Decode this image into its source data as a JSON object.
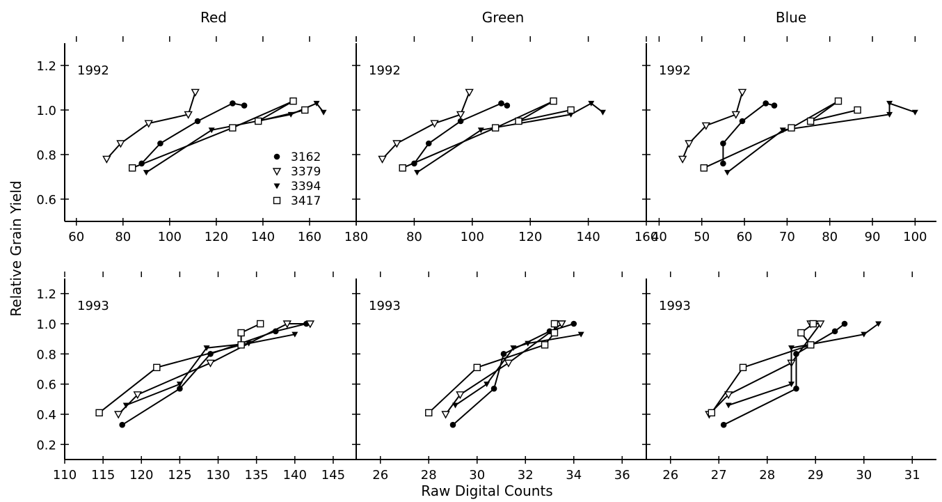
{
  "figure": {
    "ylabel": "Relative Grain Yield",
    "xlabel": "Raw Digital Counts",
    "column_titles": [
      "Red",
      "Green",
      "Blue"
    ]
  },
  "legend": {
    "placement": "inside-right of top-left panel",
    "entries": [
      {
        "label": "3162",
        "marker": "filled-circle"
      },
      {
        "label": "3379",
        "marker": "open-triangle-down"
      },
      {
        "label": "3394",
        "marker": "filled-triangle-down"
      },
      {
        "label": "3417",
        "marker": "open-square"
      }
    ]
  },
  "chart_data": [
    {
      "type": "line",
      "column_title": "Red",
      "panel_label": "1992",
      "xlim": [
        55,
        180
      ],
      "ylim": [
        0.5,
        1.3
      ],
      "xticks": [
        60,
        80,
        100,
        120,
        140,
        160,
        180
      ],
      "xtick_labels": [
        "60",
        "80",
        "100",
        "120",
        "140",
        "160",
        "180"
      ],
      "yticks": [
        0.6,
        0.8,
        1.0,
        1.2
      ],
      "ytick_labels": [
        "0.6",
        "0.8",
        "1.0",
        "1.2"
      ],
      "series": [
        {
          "name": "3162",
          "x": [
            88,
            96,
            112,
            127,
            132
          ],
          "y": [
            0.76,
            0.85,
            0.95,
            1.03,
            1.02
          ]
        },
        {
          "name": "3379",
          "x": [
            73,
            79,
            91,
            108,
            111
          ],
          "y": [
            0.78,
            0.85,
            0.94,
            0.98,
            1.08
          ]
        },
        {
          "name": "3394",
          "x": [
            90,
            118,
            152,
            163,
            166
          ],
          "y": [
            0.72,
            0.91,
            0.98,
            1.03,
            0.99
          ]
        },
        {
          "name": "3417",
          "x": [
            84,
            127,
            153,
            138,
            158
          ],
          "y": [
            0.74,
            0.92,
            1.04,
            0.95,
            1.0
          ]
        }
      ]
    },
    {
      "type": "line",
      "column_title": "Green",
      "panel_label": "1992",
      "xlim": [
        60,
        160
      ],
      "ylim": [
        0.5,
        1.3
      ],
      "xticks": [
        60,
        80,
        100,
        120,
        140,
        160
      ],
      "xtick_labels": [
        "",
        "80",
        "100",
        "120",
        "140",
        "160"
      ],
      "yticks": [
        0.6,
        0.8,
        1.0,
        1.2
      ],
      "ytick_labels": [],
      "series": [
        {
          "name": "3162",
          "x": [
            80,
            85,
            96,
            110,
            112
          ],
          "y": [
            0.76,
            0.85,
            0.95,
            1.03,
            1.02
          ]
        },
        {
          "name": "3379",
          "x": [
            69,
            74,
            87,
            96,
            99
          ],
          "y": [
            0.78,
            0.85,
            0.94,
            0.98,
            1.08
          ]
        },
        {
          "name": "3394",
          "x": [
            81,
            103,
            134,
            141,
            145
          ],
          "y": [
            0.72,
            0.91,
            0.98,
            1.03,
            0.99
          ]
        },
        {
          "name": "3417",
          "x": [
            76,
            108,
            128,
            116,
            134
          ],
          "y": [
            0.74,
            0.92,
            1.04,
            0.95,
            1.0
          ]
        }
      ]
    },
    {
      "type": "line",
      "column_title": "Blue",
      "panel_label": "1992",
      "xlim": [
        37,
        105
      ],
      "ylim": [
        0.5,
        1.3
      ],
      "xticks": [
        40,
        50,
        60,
        70,
        80,
        90,
        100
      ],
      "xtick_labels": [
        "40",
        "50",
        "60",
        "70",
        "80",
        "90",
        "100"
      ],
      "yticks": [
        0.6,
        0.8,
        1.0,
        1.2
      ],
      "ytick_labels": [],
      "series": [
        {
          "name": "3162",
          "x": [
            55,
            55,
            59.5,
            65,
            67
          ],
          "y": [
            0.76,
            0.85,
            0.95,
            1.03,
            1.02
          ]
        },
        {
          "name": "3379",
          "x": [
            45.5,
            47,
            51,
            58,
            59.5
          ],
          "y": [
            0.78,
            0.85,
            0.93,
            0.98,
            1.08
          ]
        },
        {
          "name": "3394",
          "x": [
            56,
            69,
            94,
            94,
            100
          ],
          "y": [
            0.72,
            0.91,
            0.98,
            1.03,
            0.99
          ]
        },
        {
          "name": "3417",
          "x": [
            50.5,
            71,
            82,
            75.5,
            86.5
          ],
          "y": [
            0.74,
            0.92,
            1.04,
            0.95,
            1.0
          ]
        }
      ]
    },
    {
      "type": "line",
      "column_title": "Red",
      "panel_label": "1993",
      "xlim": [
        110,
        148
      ],
      "ylim": [
        0.1,
        1.3
      ],
      "xticks": [
        110,
        115,
        120,
        125,
        130,
        135,
        140,
        145
      ],
      "xtick_labels": [
        "110",
        "115",
        "120",
        "125",
        "130",
        "135",
        "140",
        "145"
      ],
      "yticks": [
        0.2,
        0.4,
        0.6,
        0.8,
        1.0,
        1.2
      ],
      "ytick_labels": [
        "0.2",
        "0.4",
        "0.6",
        "0.8",
        "1.0",
        "1.2"
      ],
      "series": [
        {
          "name": "3162",
          "x": [
            117.5,
            125,
            129,
            137.5,
            141.5
          ],
          "y": [
            0.33,
            0.57,
            0.8,
            0.95,
            1.0
          ]
        },
        {
          "name": "3379",
          "x": [
            117,
            119.5,
            129,
            139,
            142
          ],
          "y": [
            0.4,
            0.53,
            0.74,
            1.0,
            1.0
          ]
        },
        {
          "name": "3394",
          "x": [
            118,
            125,
            128.5,
            134,
            140
          ],
          "y": [
            0.46,
            0.6,
            0.84,
            0.87,
            0.93
          ]
        },
        {
          "name": "3417",
          "x": [
            114.5,
            122,
            133,
            133,
            135.5
          ],
          "y": [
            0.41,
            0.71,
            0.86,
            0.94,
            1.0
          ]
        }
      ]
    },
    {
      "type": "line",
      "column_title": "Green",
      "panel_label": "1993",
      "xlim": [
        25,
        37
      ],
      "ylim": [
        0.1,
        1.3
      ],
      "xticks": [
        26,
        28,
        30,
        32,
        34,
        36
      ],
      "xtick_labels": [
        "26",
        "28",
        "30",
        "32",
        "34",
        "36"
      ],
      "yticks": [
        0.2,
        0.4,
        0.6,
        0.8,
        1.0,
        1.2
      ],
      "ytick_labels": [],
      "series": [
        {
          "name": "3162",
          "x": [
            29,
            30.7,
            31.1,
            33,
            34
          ],
          "y": [
            0.33,
            0.57,
            0.8,
            0.95,
            1.0
          ]
        },
        {
          "name": "3379",
          "x": [
            28.7,
            29.3,
            31.3,
            33.5,
            33.5
          ],
          "y": [
            0.4,
            0.53,
            0.74,
            1.0,
            1.0
          ]
        },
        {
          "name": "3394",
          "x": [
            29.1,
            30.4,
            31.5,
            32.1,
            34.3
          ],
          "y": [
            0.46,
            0.6,
            0.84,
            0.87,
            0.93
          ]
        },
        {
          "name": "3417",
          "x": [
            28,
            30,
            32.8,
            33.2,
            33.2
          ],
          "y": [
            0.41,
            0.71,
            0.86,
            0.94,
            1.0
          ]
        }
      ]
    },
    {
      "type": "line",
      "column_title": "Blue",
      "panel_label": "1993",
      "xlim": [
        25.5,
        31.5
      ],
      "ylim": [
        0.1,
        1.3
      ],
      "xticks": [
        26,
        27,
        28,
        29,
        30,
        31
      ],
      "xtick_labels": [
        "26",
        "27",
        "28",
        "29",
        "30",
        "31"
      ],
      "yticks": [
        0.2,
        0.4,
        0.6,
        0.8,
        1.0,
        1.2
      ],
      "ytick_labels": [],
      "series": [
        {
          "name": "3162",
          "x": [
            27.1,
            28.6,
            28.6,
            29.4,
            29.6
          ],
          "y": [
            0.33,
            0.57,
            0.8,
            0.95,
            1.0
          ]
        },
        {
          "name": "3379",
          "x": [
            26.8,
            27.2,
            28.5,
            29.1,
            28.9
          ],
          "y": [
            0.4,
            0.53,
            0.74,
            1.0,
            1.0
          ]
        },
        {
          "name": "3394",
          "x": [
            27.2,
            28.5,
            28.5,
            30,
            30.3
          ],
          "y": [
            0.46,
            0.6,
            0.84,
            0.93,
            1.0
          ]
        },
        {
          "name": "3417",
          "x": [
            26.85,
            27.5,
            28.9,
            28.7,
            28.95
          ],
          "y": [
            0.41,
            0.71,
            0.86,
            0.94,
            1.0
          ]
        }
      ]
    }
  ]
}
